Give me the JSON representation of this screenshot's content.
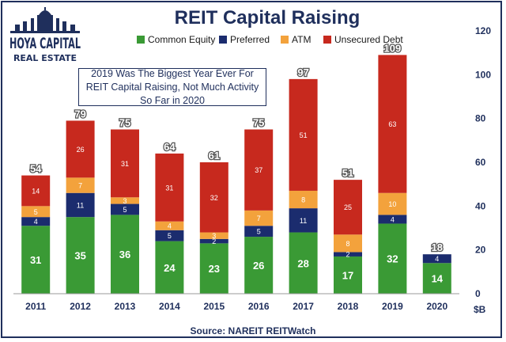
{
  "logo": {
    "line1": "HOYA CAPITAL",
    "line2": "REAL ESTATE"
  },
  "annotation": "2019 Was The Biggest Year Ever For REIT Capital Raising, Not Much Activity So Far in 2020",
  "source": "Source: NAREIT REITWatch",
  "chart_data": {
    "type": "bar",
    "stacked": true,
    "title": "REIT Capital Raising",
    "categories": [
      "2011",
      "2012",
      "2013",
      "2014",
      "2015",
      "2016",
      "2017",
      "2018",
      "2019",
      "2020"
    ],
    "series": [
      {
        "name": "Common Equity",
        "color": "#3a9a35",
        "values": [
          31,
          35,
          36,
          24,
          23,
          26,
          28,
          17,
          32,
          14
        ],
        "labels": [
          "31",
          "35",
          "36",
          "24",
          "23",
          "26",
          "28",
          "17",
          "32",
          "14"
        ]
      },
      {
        "name": "Preferred",
        "color": "#1b2c6e",
        "values": [
          4,
          11,
          5,
          5,
          2,
          5,
          11,
          2,
          4,
          4
        ],
        "labels": [
          "4",
          "11",
          "5",
          "5",
          "2",
          "5",
          "11",
          "2",
          "4",
          "4"
        ]
      },
      {
        "name": "ATM",
        "color": "#f3a23c",
        "values": [
          5,
          7,
          3,
          4,
          3,
          7,
          8,
          8,
          10,
          0
        ],
        "labels": [
          "5",
          "7",
          "3",
          "4",
          "3",
          "7",
          "8",
          "8",
          "10",
          ""
        ]
      },
      {
        "name": "Unsecured Debt",
        "color": "#c7291e",
        "values": [
          14,
          26,
          31,
          31,
          32,
          37,
          51,
          25,
          63,
          0
        ],
        "labels": [
          "14",
          "26",
          "31",
          "31",
          "32",
          "37",
          "51",
          "25",
          "63",
          ""
        ]
      }
    ],
    "totals": [
      "54",
      "79",
      "75",
      "64",
      "61",
      "75",
      "97",
      "51",
      "109",
      "18"
    ],
    "ylim": [
      0,
      120
    ],
    "yticks": [
      "0",
      "20",
      "40",
      "60",
      "80",
      "100",
      "120"
    ],
    "ylabel": "$B",
    "legend": "top-center",
    "grid": false
  }
}
